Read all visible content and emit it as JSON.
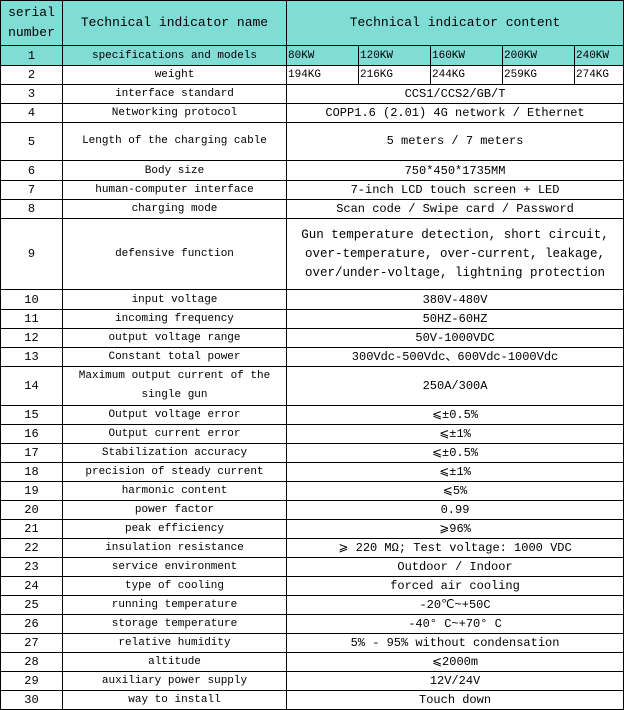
{
  "header": {
    "serial": "serial number",
    "name": "Technical indicator name",
    "content": "Technical indicator content"
  },
  "models_row": {
    "no": "1",
    "name": "specifications and models",
    "values": [
      "80KW",
      "120KW",
      "160KW",
      "200KW",
      "240KW"
    ]
  },
  "weight_row": {
    "no": "2",
    "name": "weight",
    "values": [
      "194KG",
      "216KG",
      "244KG",
      "259KG",
      "274KG"
    ]
  },
  "rows": [
    {
      "no": "3",
      "name": "interface standard",
      "content": "CCS1/CCS2/GB/T"
    },
    {
      "no": "4",
      "name": "Networking protocol",
      "content": "COPP1.6 (2.01) 4G network / Ethernet"
    },
    {
      "no": "5",
      "name": "Length of the charging cable",
      "content": "5 meters / 7 meters"
    },
    {
      "no": "6",
      "name": "Body size",
      "content": "750*450*1735MM"
    },
    {
      "no": "7",
      "name": "human-computer interface",
      "content": "7-inch LCD touch screen + LED"
    },
    {
      "no": "8",
      "name": "charging mode",
      "content": "Scan code / Swipe card / Password"
    },
    {
      "no": "9",
      "name": "defensive function",
      "content": "Gun temperature detection, short circuit, over-temperature, over-current, leakage, over/under-voltage, lightning protection"
    },
    {
      "no": "10",
      "name": "input voltage",
      "content": "380V-480V"
    },
    {
      "no": "11",
      "name": "incoming frequency",
      "content": "50HZ-60HZ"
    },
    {
      "no": "12",
      "name": "output voltage range",
      "content": "50V-1000VDC"
    },
    {
      "no": "13",
      "name": "Constant total power",
      "content": "300Vdc-500Vdc、600Vdc-1000Vdc"
    },
    {
      "no": "14",
      "name": "Maximum output current of the single gun",
      "content": "250A/300A"
    },
    {
      "no": "15",
      "name": "Output voltage error",
      "content": "⩽±0.5%"
    },
    {
      "no": "16",
      "name": "Output current error",
      "content": "⩽±1%"
    },
    {
      "no": "17",
      "name": "Stabilization accuracy",
      "content": "⩽±0.5%"
    },
    {
      "no": "18",
      "name": "precision of steady current",
      "content": "⩽±1%"
    },
    {
      "no": "19",
      "name": "harmonic content",
      "content": "⩽5%"
    },
    {
      "no": "20",
      "name": "power factor",
      "content": "0.99"
    },
    {
      "no": "21",
      "name": "peak efficiency",
      "content": "⩾96%"
    },
    {
      "no": "22",
      "name": "insulation resistance",
      "content": "⩾ 220 MΩ; Test voltage: 1000 VDC"
    },
    {
      "no": "23",
      "name": "service environment",
      "content": "Outdoor / Indoor"
    },
    {
      "no": "24",
      "name": "type of cooling",
      "content": "forced air cooling"
    },
    {
      "no": "25",
      "name": "running temperature",
      "content": "-20℃~+50C"
    },
    {
      "no": "26",
      "name": "storage temperature",
      "content": "-40° C~+70° C"
    },
    {
      "no": "27",
      "name": "relative humidity",
      "content": "5% - 95% without condensation"
    },
    {
      "no": "28",
      "name": "altitude",
      "content": "⩽2000m"
    },
    {
      "no": "29",
      "name": "auxiliary power supply",
      "content": "12V/24V"
    },
    {
      "no": "30",
      "name": "way to install",
      "content": "Touch down"
    }
  ],
  "colors": {
    "header_bg": "#80ddd6"
  }
}
